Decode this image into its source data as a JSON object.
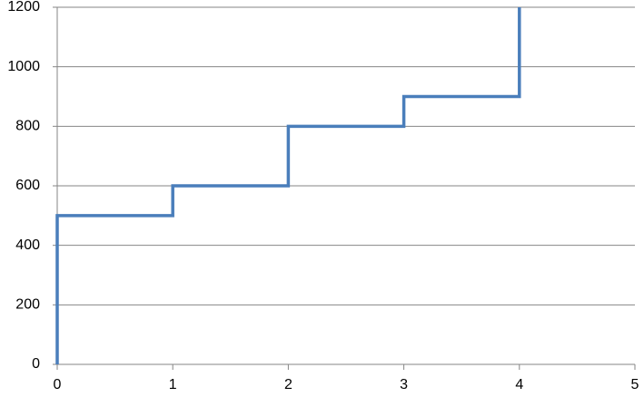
{
  "chart_data": {
    "type": "line",
    "series": [
      {
        "color": "#4a7ebb",
        "x": [
          0,
          0,
          1,
          1,
          2,
          2,
          3,
          3,
          4,
          4
        ],
        "values": [
          0,
          500,
          500,
          600,
          600,
          800,
          800,
          900,
          900,
          1200
        ]
      }
    ],
    "xlim": [
      0,
      5
    ],
    "xticks": [
      0,
      1,
      2,
      3,
      4,
      5
    ],
    "ylim": [
      0,
      1200
    ],
    "yticks": [
      0,
      200,
      400,
      600,
      800,
      1000,
      1200
    ],
    "grid": true
  }
}
